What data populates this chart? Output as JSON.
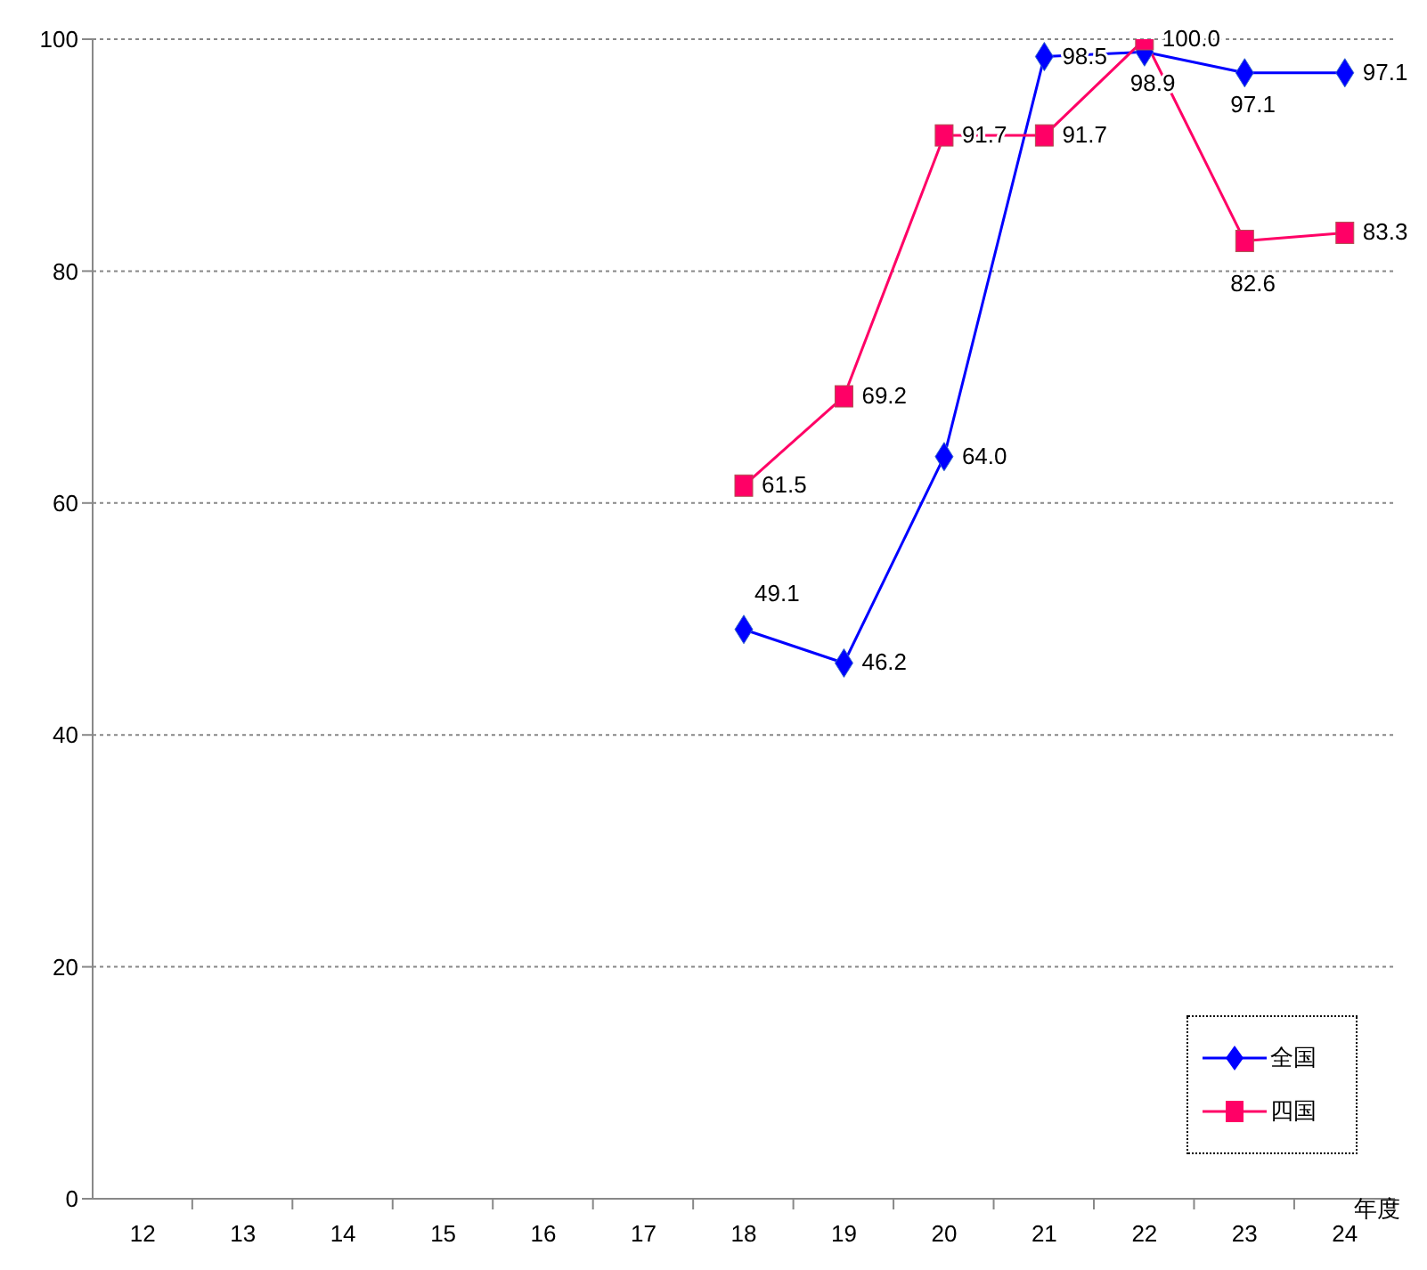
{
  "chart_data": {
    "type": "line",
    "xlabel": "年度",
    "categories": [
      "12",
      "13",
      "14",
      "15",
      "16",
      "17",
      "18",
      "19",
      "20",
      "21",
      "22",
      "23",
      "24"
    ],
    "series": [
      {
        "name": "全国",
        "color": "#0000ff",
        "marker": "diamond",
        "values": [
          null,
          null,
          null,
          null,
          null,
          null,
          49.1,
          46.2,
          64.0,
          98.5,
          98.9,
          97.1,
          97.1
        ],
        "value_labels": [
          null,
          null,
          null,
          null,
          null,
          null,
          "49.1",
          "46.2",
          "64.0",
          "98.5",
          "98.9",
          "97.1",
          "97.1"
        ]
      },
      {
        "name": "四国",
        "color": "#ff0066",
        "marker": "square",
        "values": [
          null,
          null,
          null,
          null,
          null,
          null,
          61.5,
          69.2,
          91.7,
          91.7,
          100.0,
          82.6,
          83.3
        ],
        "value_labels": [
          null,
          null,
          null,
          null,
          null,
          null,
          "61.5",
          "69.2",
          "91.7",
          "91.7",
          "100.0",
          "82.6",
          "83.3"
        ]
      }
    ],
    "ylim": [
      0,
      100
    ],
    "yticks": [
      0,
      20,
      40,
      60,
      80,
      100
    ],
    "grid": "y",
    "legend": "bottom right"
  }
}
